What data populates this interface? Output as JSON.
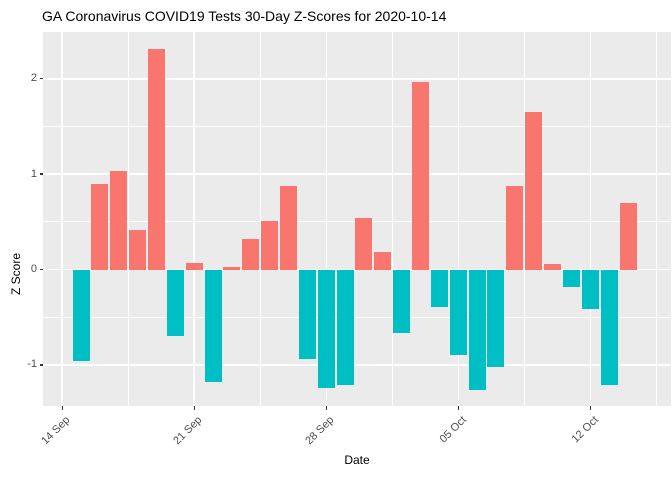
{
  "chart_data": {
    "type": "bar",
    "title": "GA Coronavirus COVID19 Tests 30-Day Z-Scores for 2020-10-14",
    "xlabel": "Date",
    "ylabel": "Z Score",
    "categories": [
      "15 Sep",
      "16 Sep",
      "17 Sep",
      "18 Sep",
      "19 Sep",
      "20 Sep",
      "21 Sep",
      "22 Sep",
      "23 Sep",
      "24 Sep",
      "25 Sep",
      "26 Sep",
      "27 Sep",
      "28 Sep",
      "29 Sep",
      "30 Sep",
      "01 Oct",
      "02 Oct",
      "03 Oct",
      "04 Oct",
      "05 Oct",
      "06 Oct",
      "07 Oct",
      "08 Oct",
      "09 Oct",
      "10 Oct",
      "11 Oct",
      "12 Oct",
      "13 Oct",
      "14 Oct"
    ],
    "values": [
      -0.96,
      0.9,
      1.03,
      0.41,
      2.31,
      -0.7,
      0.07,
      -1.18,
      0.03,
      0.32,
      0.51,
      0.88,
      -0.94,
      -1.24,
      -1.21,
      0.54,
      0.18,
      -0.67,
      1.97,
      -0.39,
      -0.9,
      -1.26,
      -1.02,
      0.88,
      1.65,
      0.06,
      -0.18,
      -0.41,
      -1.21,
      0.7
    ],
    "bar_days_after_first_tick": "index+1",
    "x_ticks": [
      {
        "label": "14 Sep",
        "day": 0
      },
      {
        "label": "21 Sep",
        "day": 7
      },
      {
        "label": "28 Sep",
        "day": 14
      },
      {
        "label": "05 Oct",
        "day": 21
      },
      {
        "label": "12 Oct",
        "day": 28
      }
    ],
    "x_minor_days": [
      3.5,
      10.5,
      17.5,
      24.5,
      31.5
    ],
    "y_ticks": [
      -1,
      0,
      1,
      2
    ],
    "y_minor": [
      -1.5,
      -0.5,
      0.5,
      1.5,
      2.5
    ],
    "ylim": [
      -1.43,
      2.49
    ],
    "xlim_days": [
      -1.02,
      32.28
    ],
    "grid": true,
    "legend": false,
    "colors": {
      "positive": "#F8766D",
      "negative": "#00BFC4",
      "panel_bg": "#EBEBEB",
      "grid": "#FFFFFF",
      "tick_label": "#4D4D4D",
      "tick_mark": "#333333",
      "title": "#000000",
      "axis_title": "#000000"
    }
  }
}
